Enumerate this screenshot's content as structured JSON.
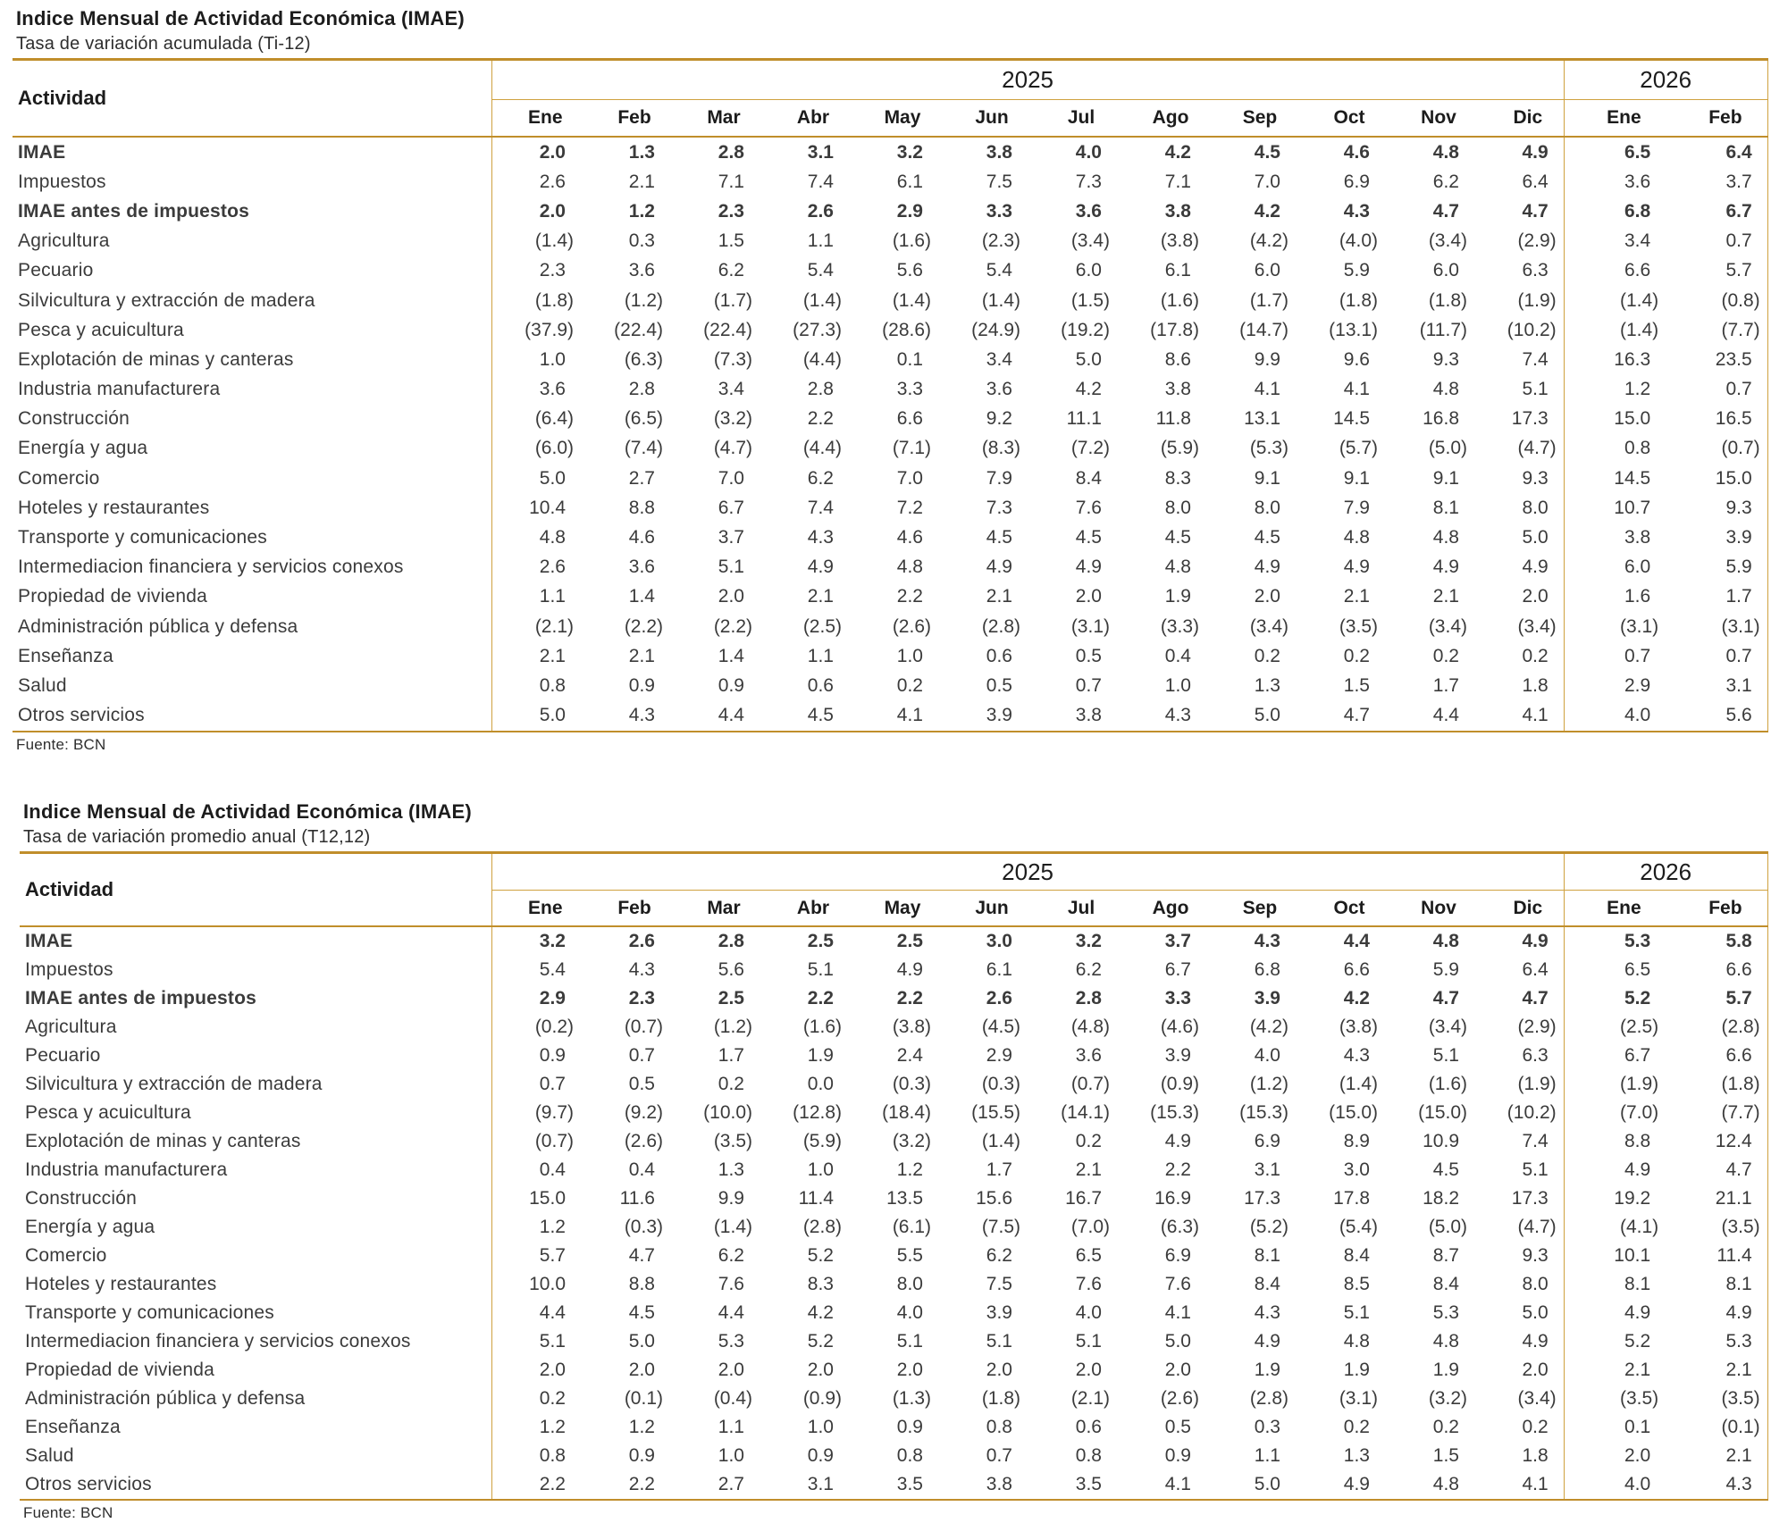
{
  "colors": {
    "border_gold_thick": "#C08E2B",
    "border_gold_thin": "#CFA13F",
    "title_text": "#1c1c1c",
    "body_text": "#3b3b3b"
  },
  "tables": [
    {
      "title": "Indice Mensual de Actividad Económica (IMAE)",
      "subtitle": "Tasa de variación acumulada (Ti-12)",
      "activity_header": "Actividad",
      "source": "Fuente: BCN",
      "year_groups": [
        {
          "label": "2025",
          "months": [
            "Ene",
            "Feb",
            "Mar",
            "Abr",
            "May",
            "Jun",
            "Jul",
            "Ago",
            "Sep",
            "Oct",
            "Nov",
            "Dic"
          ]
        },
        {
          "label": "2026",
          "months": [
            "Ene",
            "Feb"
          ]
        }
      ],
      "rows": [
        {
          "label": "IMAE",
          "bold": true,
          "values": [
            "2.0",
            "1.3",
            "2.8",
            "3.1",
            "3.2",
            "3.8",
            "4.0",
            "4.2",
            "4.5",
            "4.6",
            "4.8",
            "4.9",
            "6.5",
            "6.4"
          ]
        },
        {
          "label": "Impuestos",
          "bold": false,
          "values": [
            "2.6",
            "2.1",
            "7.1",
            "7.4",
            "6.1",
            "7.5",
            "7.3",
            "7.1",
            "7.0",
            "6.9",
            "6.2",
            "6.4",
            "3.6",
            "3.7"
          ]
        },
        {
          "label": "IMAE antes de impuestos",
          "bold": true,
          "values": [
            "2.0",
            "1.2",
            "2.3",
            "2.6",
            "2.9",
            "3.3",
            "3.6",
            "3.8",
            "4.2",
            "4.3",
            "4.7",
            "4.7",
            "6.8",
            "6.7"
          ]
        },
        {
          "label": "Agricultura",
          "bold": false,
          "values": [
            "(1.4)",
            "0.3",
            "1.5",
            "1.1",
            "(1.6)",
            "(2.3)",
            "(3.4)",
            "(3.8)",
            "(4.2)",
            "(4.0)",
            "(3.4)",
            "(2.9)",
            "3.4",
            "0.7"
          ]
        },
        {
          "label": "Pecuario",
          "bold": false,
          "values": [
            "2.3",
            "3.6",
            "6.2",
            "5.4",
            "5.6",
            "5.4",
            "6.0",
            "6.1",
            "6.0",
            "5.9",
            "6.0",
            "6.3",
            "6.6",
            "5.7"
          ]
        },
        {
          "label": "Silvicultura y extracción de madera",
          "bold": false,
          "values": [
            "(1.8)",
            "(1.2)",
            "(1.7)",
            "(1.4)",
            "(1.4)",
            "(1.4)",
            "(1.5)",
            "(1.6)",
            "(1.7)",
            "(1.8)",
            "(1.8)",
            "(1.9)",
            "(1.4)",
            "(0.8)"
          ]
        },
        {
          "label": "Pesca y acuicultura",
          "bold": false,
          "values": [
            "(37.9)",
            "(22.4)",
            "(22.4)",
            "(27.3)",
            "(28.6)",
            "(24.9)",
            "(19.2)",
            "(17.8)",
            "(14.7)",
            "(13.1)",
            "(11.7)",
            "(10.2)",
            "(1.4)",
            "(7.7)"
          ]
        },
        {
          "label": "Explotación de minas y canteras",
          "bold": false,
          "values": [
            "1.0",
            "(6.3)",
            "(7.3)",
            "(4.4)",
            "0.1",
            "3.4",
            "5.0",
            "8.6",
            "9.9",
            "9.6",
            "9.3",
            "7.4",
            "16.3",
            "23.5"
          ]
        },
        {
          "label": "Industria manufacturera",
          "bold": false,
          "values": [
            "3.6",
            "2.8",
            "3.4",
            "2.8",
            "3.3",
            "3.6",
            "4.2",
            "3.8",
            "4.1",
            "4.1",
            "4.8",
            "5.1",
            "1.2",
            "0.7"
          ]
        },
        {
          "label": "Construcción",
          "bold": false,
          "values": [
            "(6.4)",
            "(6.5)",
            "(3.2)",
            "2.2",
            "6.6",
            "9.2",
            "11.1",
            "11.8",
            "13.1",
            "14.5",
            "16.8",
            "17.3",
            "15.0",
            "16.5"
          ]
        },
        {
          "label": "Energía y agua",
          "bold": false,
          "values": [
            "(6.0)",
            "(7.4)",
            "(4.7)",
            "(4.4)",
            "(7.1)",
            "(8.3)",
            "(7.2)",
            "(5.9)",
            "(5.3)",
            "(5.7)",
            "(5.0)",
            "(4.7)",
            "0.8",
            "(0.7)"
          ]
        },
        {
          "label": "Comercio",
          "bold": false,
          "values": [
            "5.0",
            "2.7",
            "7.0",
            "6.2",
            "7.0",
            "7.9",
            "8.4",
            "8.3",
            "9.1",
            "9.1",
            "9.1",
            "9.3",
            "14.5",
            "15.0"
          ]
        },
        {
          "label": "Hoteles y restaurantes",
          "bold": false,
          "values": [
            "10.4",
            "8.8",
            "6.7",
            "7.4",
            "7.2",
            "7.3",
            "7.6",
            "8.0",
            "8.0",
            "7.9",
            "8.1",
            "8.0",
            "10.7",
            "9.3"
          ]
        },
        {
          "label": "Transporte y comunicaciones",
          "bold": false,
          "values": [
            "4.8",
            "4.6",
            "3.7",
            "4.3",
            "4.6",
            "4.5",
            "4.5",
            "4.5",
            "4.5",
            "4.8",
            "4.8",
            "5.0",
            "3.8",
            "3.9"
          ]
        },
        {
          "label": "Intermediacion financiera y servicios conexos",
          "bold": false,
          "values": [
            "2.6",
            "3.6",
            "5.1",
            "4.9",
            "4.8",
            "4.9",
            "4.9",
            "4.8",
            "4.9",
            "4.9",
            "4.9",
            "4.9",
            "6.0",
            "5.9"
          ]
        },
        {
          "label": "Propiedad de vivienda",
          "bold": false,
          "values": [
            "1.1",
            "1.4",
            "2.0",
            "2.1",
            "2.2",
            "2.1",
            "2.0",
            "1.9",
            "2.0",
            "2.1",
            "2.1",
            "2.0",
            "1.6",
            "1.7"
          ]
        },
        {
          "label": "Administración pública y defensa",
          "bold": false,
          "values": [
            "(2.1)",
            "(2.2)",
            "(2.2)",
            "(2.5)",
            "(2.6)",
            "(2.8)",
            "(3.1)",
            "(3.3)",
            "(3.4)",
            "(3.5)",
            "(3.4)",
            "(3.4)",
            "(3.1)",
            "(3.1)"
          ]
        },
        {
          "label": "Enseñanza",
          "bold": false,
          "values": [
            "2.1",
            "2.1",
            "1.4",
            "1.1",
            "1.0",
            "0.6",
            "0.5",
            "0.4",
            "0.2",
            "0.2",
            "0.2",
            "0.2",
            "0.7",
            "0.7"
          ]
        },
        {
          "label": "Salud",
          "bold": false,
          "values": [
            "0.8",
            "0.9",
            "0.9",
            "0.6",
            "0.2",
            "0.5",
            "0.7",
            "1.0",
            "1.3",
            "1.5",
            "1.7",
            "1.8",
            "2.9",
            "3.1"
          ]
        },
        {
          "label": "Otros servicios",
          "bold": false,
          "values": [
            "5.0",
            "4.3",
            "4.4",
            "4.5",
            "4.1",
            "3.9",
            "3.8",
            "4.3",
            "5.0",
            "4.7",
            "4.4",
            "4.1",
            "4.0",
            "5.6"
          ]
        }
      ]
    },
    {
      "title": "Indice Mensual de Actividad Económica (IMAE)",
      "subtitle": "Tasa de variación promedio anual (T12,12)",
      "activity_header": "Actividad",
      "source": "Fuente: BCN",
      "year_groups": [
        {
          "label": "2025",
          "months": [
            "Ene",
            "Feb",
            "Mar",
            "Abr",
            "May",
            "Jun",
            "Jul",
            "Ago",
            "Sep",
            "Oct",
            "Nov",
            "Dic"
          ]
        },
        {
          "label": "2026",
          "months": [
            "Ene",
            "Feb"
          ]
        }
      ],
      "rows": [
        {
          "label": "IMAE",
          "bold": true,
          "values": [
            "3.2",
            "2.6",
            "2.8",
            "2.5",
            "2.5",
            "3.0",
            "3.2",
            "3.7",
            "4.3",
            "4.4",
            "4.8",
            "4.9",
            "5.3",
            "5.8"
          ]
        },
        {
          "label": "Impuestos",
          "bold": false,
          "values": [
            "5.4",
            "4.3",
            "5.6",
            "5.1",
            "4.9",
            "6.1",
            "6.2",
            "6.7",
            "6.8",
            "6.6",
            "5.9",
            "6.4",
            "6.5",
            "6.6"
          ]
        },
        {
          "label": "IMAE antes de impuestos",
          "bold": true,
          "values": [
            "2.9",
            "2.3",
            "2.5",
            "2.2",
            "2.2",
            "2.6",
            "2.8",
            "3.3",
            "3.9",
            "4.2",
            "4.7",
            "4.7",
            "5.2",
            "5.7"
          ]
        },
        {
          "label": "Agricultura",
          "bold": false,
          "values": [
            "(0.2)",
            "(0.7)",
            "(1.2)",
            "(1.6)",
            "(3.8)",
            "(4.5)",
            "(4.8)",
            "(4.6)",
            "(4.2)",
            "(3.8)",
            "(3.4)",
            "(2.9)",
            "(2.5)",
            "(2.8)"
          ]
        },
        {
          "label": "Pecuario",
          "bold": false,
          "values": [
            "0.9",
            "0.7",
            "1.7",
            "1.9",
            "2.4",
            "2.9",
            "3.6",
            "3.9",
            "4.0",
            "4.3",
            "5.1",
            "6.3",
            "6.7",
            "6.6"
          ]
        },
        {
          "label": "Silvicultura y extracción de madera",
          "bold": false,
          "values": [
            "0.7",
            "0.5",
            "0.2",
            "0.0",
            "(0.3)",
            "(0.3)",
            "(0.7)",
            "(0.9)",
            "(1.2)",
            "(1.4)",
            "(1.6)",
            "(1.9)",
            "(1.9)",
            "(1.8)"
          ]
        },
        {
          "label": "Pesca y acuicultura",
          "bold": false,
          "values": [
            "(9.7)",
            "(9.2)",
            "(10.0)",
            "(12.8)",
            "(18.4)",
            "(15.5)",
            "(14.1)",
            "(15.3)",
            "(15.3)",
            "(15.0)",
            "(15.0)",
            "(10.2)",
            "(7.0)",
            "(7.7)"
          ]
        },
        {
          "label": "Explotación de minas y canteras",
          "bold": false,
          "values": [
            "(0.7)",
            "(2.6)",
            "(3.5)",
            "(5.9)",
            "(3.2)",
            "(1.4)",
            "0.2",
            "4.9",
            "6.9",
            "8.9",
            "10.9",
            "7.4",
            "8.8",
            "12.4"
          ]
        },
        {
          "label": "Industria manufacturera",
          "bold": false,
          "values": [
            "0.4",
            "0.4",
            "1.3",
            "1.0",
            "1.2",
            "1.7",
            "2.1",
            "2.2",
            "3.1",
            "3.0",
            "4.5",
            "5.1",
            "4.9",
            "4.7"
          ]
        },
        {
          "label": "Construcción",
          "bold": false,
          "values": [
            "15.0",
            "11.6",
            "9.9",
            "11.4",
            "13.5",
            "15.6",
            "16.7",
            "16.9",
            "17.3",
            "17.8",
            "18.2",
            "17.3",
            "19.2",
            "21.1"
          ]
        },
        {
          "label": "Energía y agua",
          "bold": false,
          "values": [
            "1.2",
            "(0.3)",
            "(1.4)",
            "(2.8)",
            "(6.1)",
            "(7.5)",
            "(7.0)",
            "(6.3)",
            "(5.2)",
            "(5.4)",
            "(5.0)",
            "(4.7)",
            "(4.1)",
            "(3.5)"
          ]
        },
        {
          "label": "Comercio",
          "bold": false,
          "values": [
            "5.7",
            "4.7",
            "6.2",
            "5.2",
            "5.5",
            "6.2",
            "6.5",
            "6.9",
            "8.1",
            "8.4",
            "8.7",
            "9.3",
            "10.1",
            "11.4"
          ]
        },
        {
          "label": "Hoteles y restaurantes",
          "bold": false,
          "values": [
            "10.0",
            "8.8",
            "7.6",
            "8.3",
            "8.0",
            "7.5",
            "7.6",
            "7.6",
            "8.4",
            "8.5",
            "8.4",
            "8.0",
            "8.1",
            "8.1"
          ]
        },
        {
          "label": "Transporte y comunicaciones",
          "bold": false,
          "values": [
            "4.4",
            "4.5",
            "4.4",
            "4.2",
            "4.0",
            "3.9",
            "4.0",
            "4.1",
            "4.3",
            "5.1",
            "5.3",
            "5.0",
            "4.9",
            "4.9"
          ]
        },
        {
          "label": "Intermediacion financiera y servicios conexos",
          "bold": false,
          "values": [
            "5.1",
            "5.0",
            "5.3",
            "5.2",
            "5.1",
            "5.1",
            "5.1",
            "5.0",
            "4.9",
            "4.8",
            "4.8",
            "4.9",
            "5.2",
            "5.3"
          ]
        },
        {
          "label": "Propiedad de vivienda",
          "bold": false,
          "values": [
            "2.0",
            "2.0",
            "2.0",
            "2.0",
            "2.0",
            "2.0",
            "2.0",
            "2.0",
            "1.9",
            "1.9",
            "1.9",
            "2.0",
            "2.1",
            "2.1"
          ]
        },
        {
          "label": "Administración pública y defensa",
          "bold": false,
          "values": [
            "0.2",
            "(0.1)",
            "(0.4)",
            "(0.9)",
            "(1.3)",
            "(1.8)",
            "(2.1)",
            "(2.6)",
            "(2.8)",
            "(3.1)",
            "(3.2)",
            "(3.4)",
            "(3.5)",
            "(3.5)"
          ]
        },
        {
          "label": "Enseñanza",
          "bold": false,
          "values": [
            "1.2",
            "1.2",
            "1.1",
            "1.0",
            "0.9",
            "0.8",
            "0.6",
            "0.5",
            "0.3",
            "0.2",
            "0.2",
            "0.2",
            "0.1",
            "(0.1)"
          ]
        },
        {
          "label": "Salud",
          "bold": false,
          "values": [
            "0.8",
            "0.9",
            "1.0",
            "0.9",
            "0.8",
            "0.7",
            "0.8",
            "0.9",
            "1.1",
            "1.3",
            "1.5",
            "1.8",
            "2.0",
            "2.1"
          ]
        },
        {
          "label": "Otros servicios",
          "bold": false,
          "values": [
            "2.2",
            "2.2",
            "2.7",
            "3.1",
            "3.5",
            "3.8",
            "3.5",
            "4.1",
            "5.0",
            "4.9",
            "4.8",
            "4.1",
            "4.0",
            "4.3"
          ]
        }
      ]
    }
  ]
}
